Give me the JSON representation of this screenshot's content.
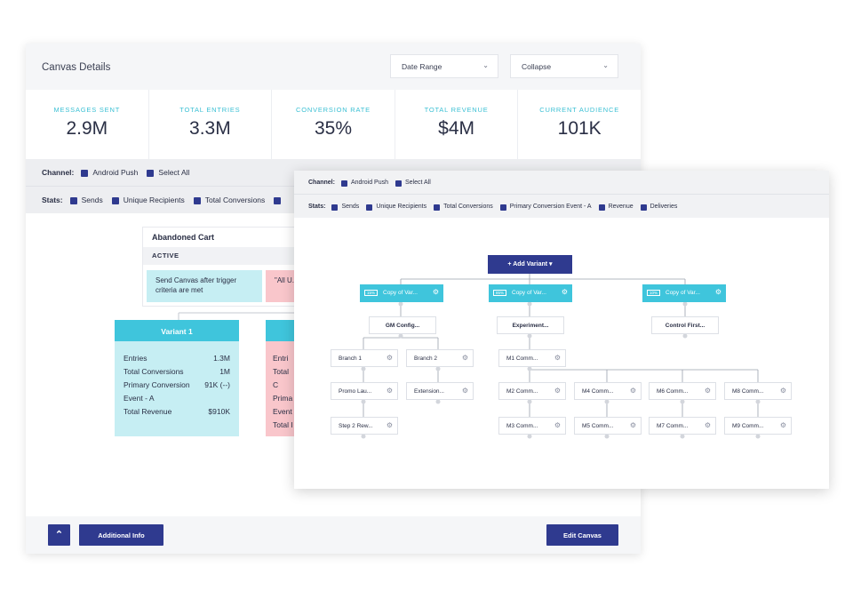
{
  "back": {
    "title": "Canvas Details",
    "date_range": "Date Range",
    "collapse": "Collapse",
    "stats": [
      {
        "label": "MESSAGES SENT",
        "value": "2.9M"
      },
      {
        "label": "TOTAL ENTRIES",
        "value": "3.3M"
      },
      {
        "label": "CONVERSION RATE",
        "value": "35%"
      },
      {
        "label": "TOTAL REVENUE",
        "value": "$4M"
      },
      {
        "label": "CURRENT AUDIENCE",
        "value": "101K"
      }
    ],
    "channel_label": "Channel:",
    "channel_opts": [
      "Android Push",
      "Select All"
    ],
    "stats_label": "Stats:",
    "stats_opts": [
      "Sends",
      "Unique Recipients",
      "Total Conversions"
    ],
    "canvas_name": "Abandoned Cart",
    "canvas_status": "ACTIVE",
    "msg1": "Send Canvas after trigger criteria are met",
    "msg2": "\"All U... is true",
    "variant1_title": "Variant 1",
    "variant1_rows": [
      {
        "k": "Entries",
        "v": "1.3M"
      },
      {
        "k": "Total Conversions",
        "v": "1M"
      },
      {
        "k": "Primary Conversion",
        "v": "91K (--)"
      },
      {
        "k": "Event - A",
        "v": ""
      },
      {
        "k": "Total Revenue",
        "v": "$910K"
      }
    ],
    "variant2_rows": [
      "Entri",
      "Total C",
      "Prima",
      "Event",
      "Total I"
    ],
    "up_icon": "chevron-up-icon",
    "additional_info": "Additional Info",
    "edit_canvas": "Edit Canvas",
    "accent": "#3fc5dc",
    "brand": "#2f3a8f"
  },
  "front": {
    "channel_label": "Channel:",
    "channel_opts": [
      "Android Push",
      "Select All"
    ],
    "stats_label": "Stats:",
    "stats_opts": [
      "Sends",
      "Unique Recipients",
      "Total Conversions",
      "Primary Conversion Event - A",
      "Revenue",
      "Deliveries"
    ],
    "add_variant": "+ Add Variant",
    "variants": [
      {
        "pct": "15%",
        "label": "Copy of Var..."
      },
      {
        "pct": "85%",
        "label": "Copy of Var..."
      },
      {
        "pct": "10%",
        "label": "Copy of Var..."
      }
    ],
    "steps": {
      "gm": "GM Config...",
      "exp": "Experiment...",
      "ctrl": "Control First...",
      "b1": "Branch 1",
      "b2": "Branch 2",
      "m1": "M1 Comm...",
      "promo": "Promo Lau...",
      "ext": "Extension...",
      "m2": "M2 Comm...",
      "m4": "M4 Comm...",
      "m6": "M6 Comm...",
      "m8": "M8 Comm...",
      "step2": "Step 2 Rew...",
      "m3": "M3 Comm...",
      "m5": "M5 Comm...",
      "m7": "M7 Comm...",
      "m9": "M9 Comm..."
    }
  }
}
